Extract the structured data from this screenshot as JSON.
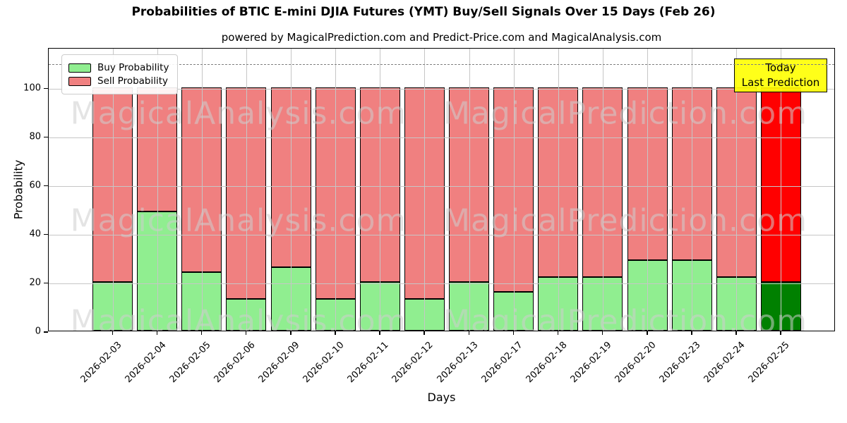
{
  "title": "Probabilities of BTIC E-mini DJIA Futures (YMT) Buy/Sell Signals Over 15 Days (Feb 26)",
  "subtitle": "powered by MagicalPrediction.com and Predict-Price.com and MagicalAnalysis.com",
  "legend": {
    "buy_label": "Buy Probability",
    "sell_label": "Sell Probability"
  },
  "annotation_box": {
    "line1": "Today",
    "line2": "Last Prediction"
  },
  "watermarks": {
    "left": "MagicalAnalysis.com",
    "right": "MagicalPrediction.com"
  },
  "colors": {
    "buy": "#90EE90",
    "sell": "#F08080",
    "buy_today": "#008000",
    "sell_today": "#FF0000",
    "today_box_bg": "#FFFF00",
    "grid": "#C6C6C6",
    "dashed_line": "#7F7F7F"
  },
  "chart_data": {
    "type": "bar",
    "stacked": true,
    "title": "Probabilities of BTIC E-mini DJIA Futures (YMT) Buy/Sell Signals Over 15 Days (Feb 26)",
    "xlabel": "Days",
    "ylabel": "Probability",
    "ylim": [
      0,
      116.5
    ],
    "yticks": [
      0,
      20,
      40,
      60,
      80,
      100
    ],
    "dashed_hline": 110,
    "grid": true,
    "legend_position": "upper left",
    "categories": [
      "2026-02-03",
      "2026-02-04",
      "2026-02-05",
      "2026-02-06",
      "2026-02-09",
      "2026-02-10",
      "2026-02-11",
      "2026-02-12",
      "2026-02-13",
      "2026-02-17",
      "2026-02-18",
      "2026-02-19",
      "2026-02-20",
      "2026-02-23",
      "2026-02-24",
      "2026-02-25"
    ],
    "series": [
      {
        "name": "Buy Probability",
        "values": [
          20,
          49,
          24,
          13,
          26,
          13,
          20,
          13,
          20,
          16,
          22,
          22,
          29,
          29,
          22,
          20
        ]
      },
      {
        "name": "Sell Probability",
        "values": [
          80,
          51,
          76,
          87,
          74,
          87,
          80,
          87,
          80,
          84,
          78,
          78,
          71,
          71,
          78,
          80
        ]
      }
    ],
    "today_bar_index": 15
  }
}
